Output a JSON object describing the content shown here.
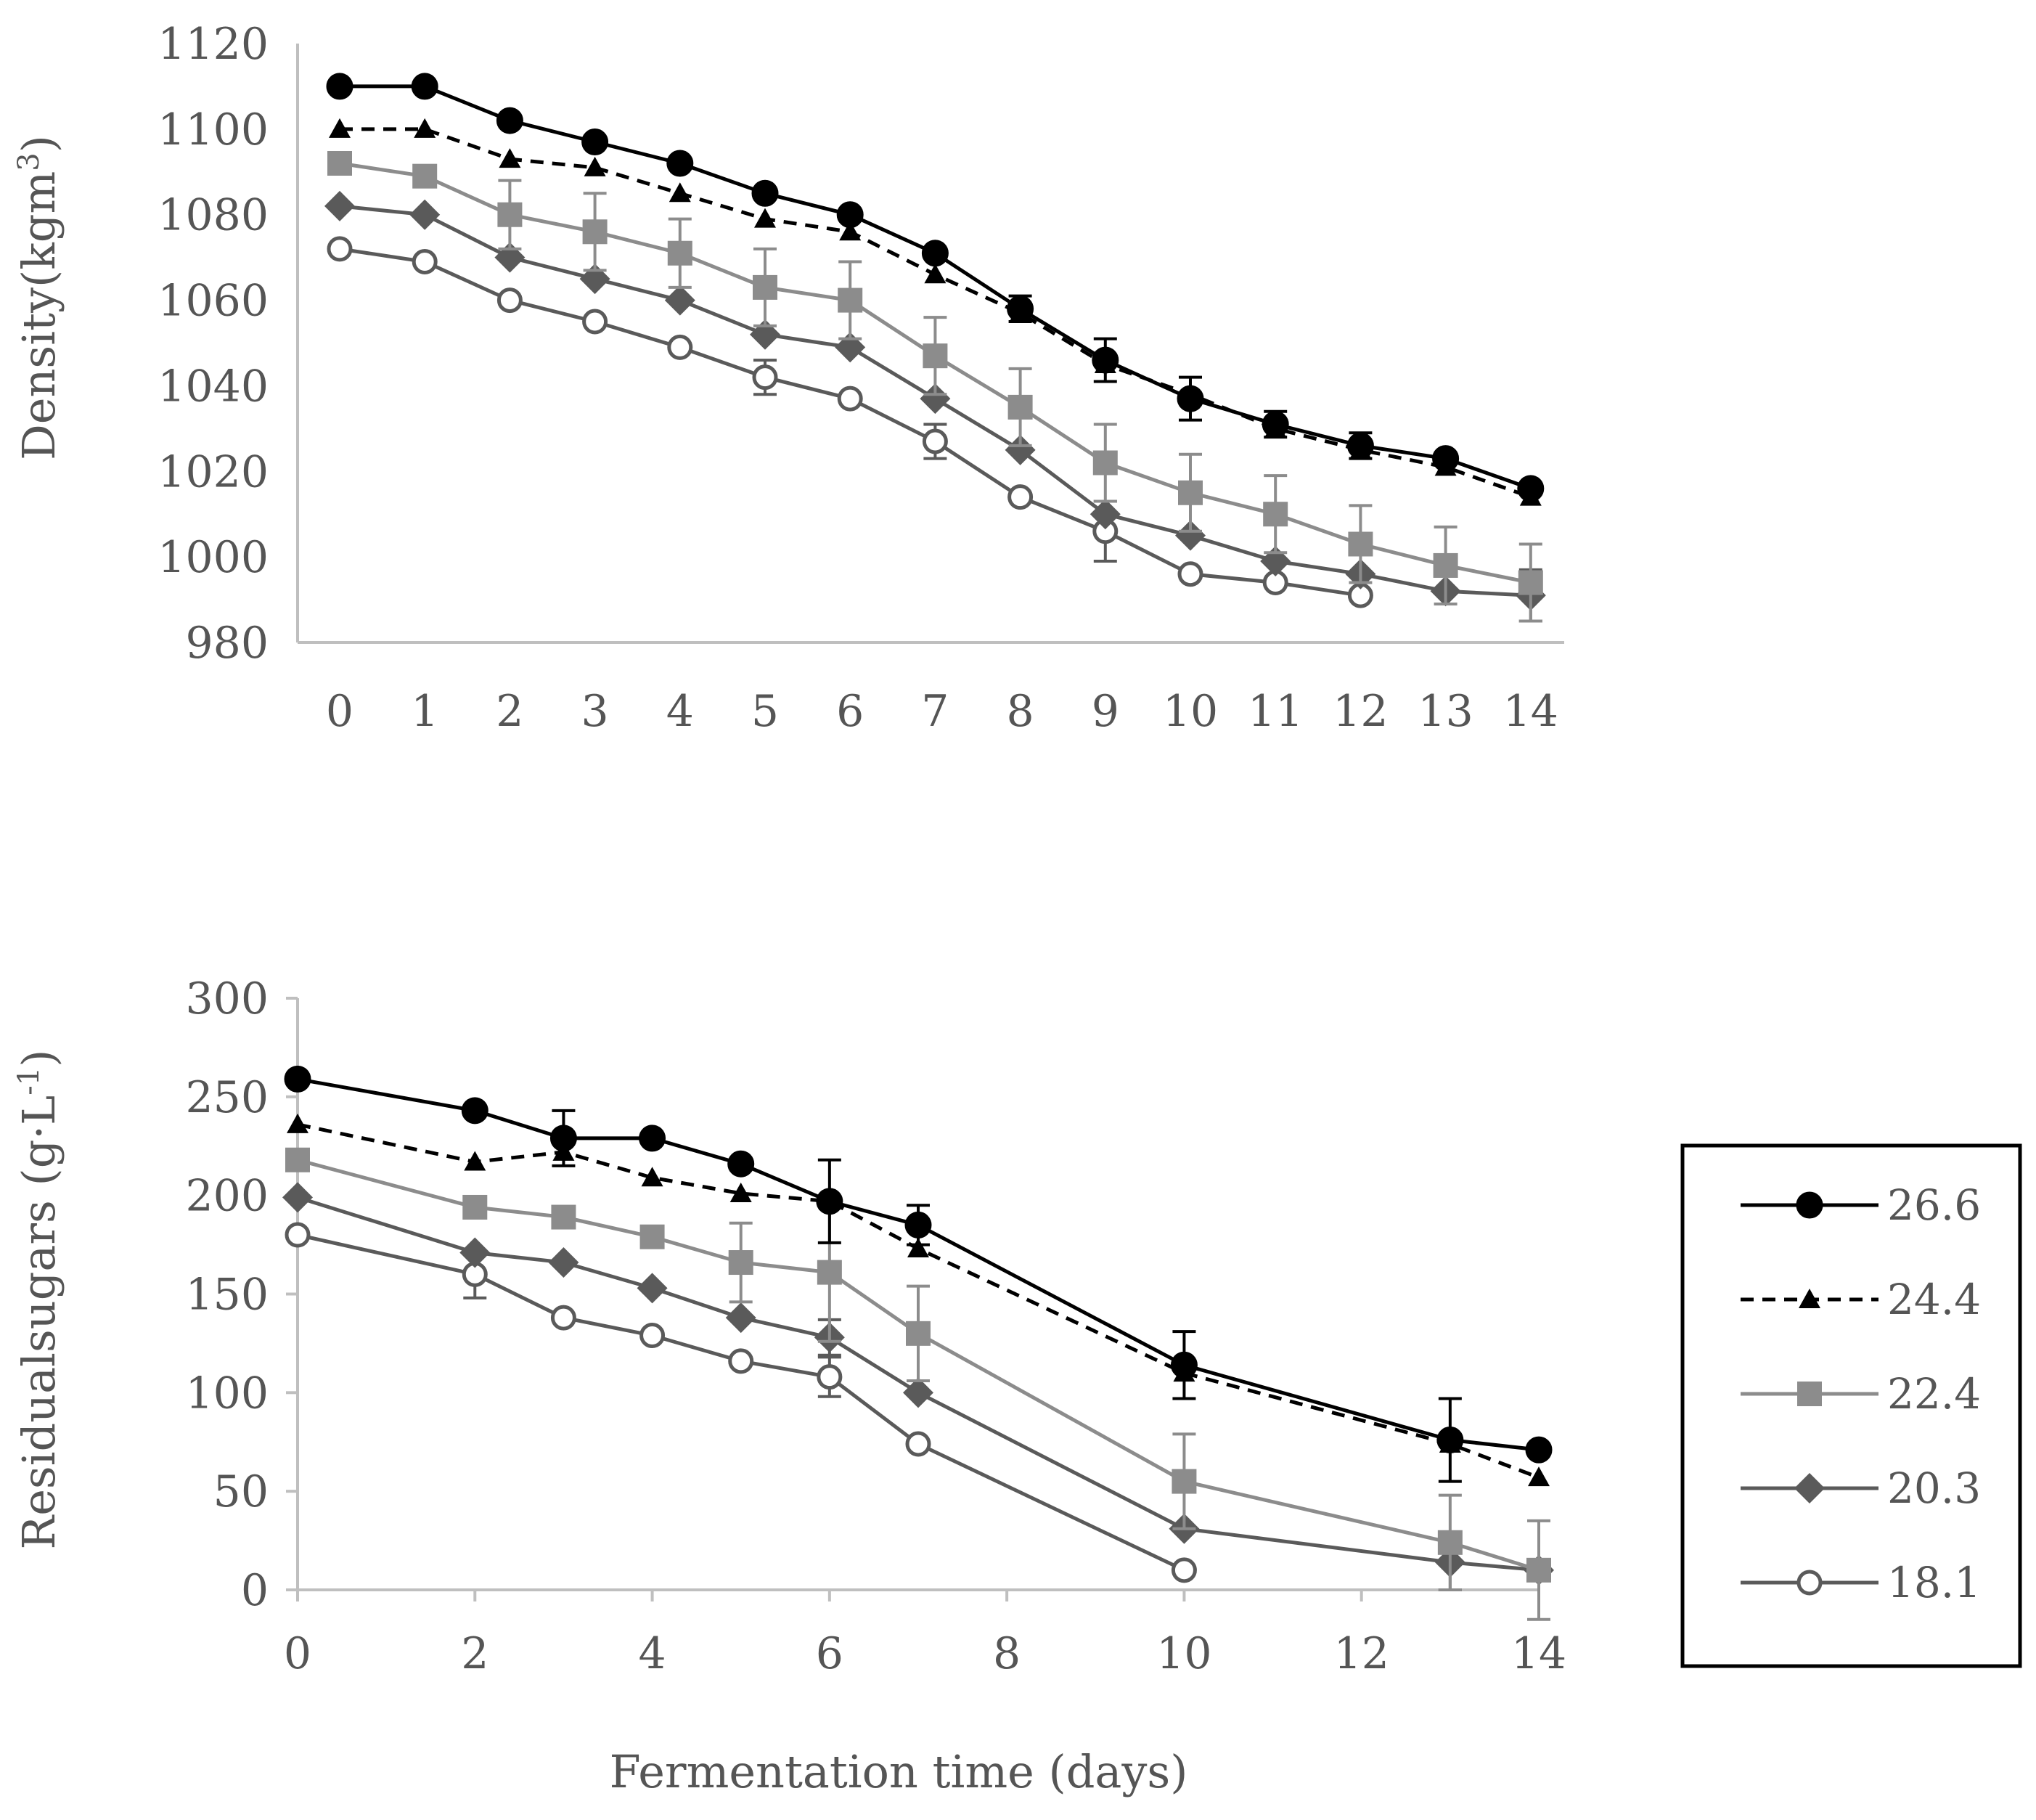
{
  "chart_data": [
    {
      "id": "density",
      "type": "line",
      "title": "",
      "xlabel": "",
      "ylabel": "Density(kgm",
      "ylabel_sup": "3",
      "ylabel_close": ")",
      "x": [
        0,
        1,
        2,
        3,
        4,
        5,
        6,
        7,
        8,
        9,
        10,
        11,
        12,
        13,
        14
      ],
      "xscale": "category",
      "xlim": [
        0,
        14
      ],
      "xticks": [
        0,
        1,
        2,
        3,
        4,
        5,
        6,
        7,
        8,
        9,
        10,
        11,
        12,
        13,
        14
      ],
      "ylim": [
        980,
        1120
      ],
      "yticks": [
        980,
        1000,
        1020,
        1040,
        1060,
        1080,
        1100,
        1120
      ],
      "grid": false,
      "series": [
        {
          "name": "26.6",
          "values": [
            1110,
            1110,
            1102,
            1097,
            1092,
            1085,
            1080,
            1071,
            1058,
            1046,
            1037,
            1031,
            1026,
            1023,
            1016
          ],
          "errors": [
            0,
            0,
            0,
            0,
            0,
            0,
            0,
            0,
            3,
            5,
            5,
            3,
            3,
            0,
            0
          ]
        },
        {
          "name": "24.4",
          "values": [
            1100,
            1100,
            1093,
            1091,
            1085,
            1079,
            1076,
            1066,
            1057,
            1045,
            1038,
            1030,
            1025,
            1021,
            1014
          ],
          "errors": [
            0,
            0,
            0,
            0,
            0,
            0,
            0,
            0,
            0,
            0,
            0,
            0,
            0,
            0,
            0
          ]
        },
        {
          "name": "22.4",
          "values": [
            1092,
            1089,
            1080,
            1076,
            1071,
            1063,
            1060,
            1047,
            1035,
            1022,
            1015,
            1010,
            1003,
            998,
            994
          ],
          "errors": [
            0,
            0,
            8,
            9,
            8,
            9,
            9,
            9,
            9,
            9,
            9,
            9,
            9,
            9,
            9
          ]
        },
        {
          "name": "20.3",
          "values": [
            1082,
            1080,
            1070,
            1065,
            1060,
            1052,
            1049,
            1037,
            1025,
            1010,
            1005,
            999,
            996,
            992,
            991
          ],
          "errors": [
            0,
            0,
            0,
            0,
            0,
            0,
            0,
            0,
            0,
            0,
            0,
            0,
            0,
            0,
            6
          ]
        },
        {
          "name": "18.1",
          "values": [
            1072,
            1069,
            1060,
            1055,
            1049,
            1042,
            1037,
            1027,
            1014,
            1006,
            996,
            994,
            991,
            null,
            null
          ],
          "errors": [
            0,
            0,
            0,
            0,
            0,
            4,
            0,
            4,
            0,
            7,
            0,
            0,
            0,
            0,
            0
          ]
        }
      ]
    },
    {
      "id": "sugars",
      "type": "line",
      "title": "",
      "xlabel": "",
      "ylabel": "Residualsugars (g·L",
      "ylabel_sup": "-1",
      "ylabel_close": ")",
      "xscale": "linear",
      "xlim": [
        0,
        14
      ],
      "xticks": [
        0,
        2,
        4,
        6,
        8,
        10,
        12,
        14
      ],
      "ylim": [
        0,
        300
      ],
      "yticks": [
        0,
        50,
        100,
        150,
        200,
        250,
        300
      ],
      "grid": false,
      "series": [
        {
          "name": "26.6",
          "x": [
            0,
            2,
            3,
            4,
            5,
            6,
            7,
            10,
            13,
            14
          ],
          "values": [
            259,
            243,
            229,
            229,
            216,
            197,
            185,
            114,
            76,
            71
          ],
          "errors": [
            0,
            0,
            14,
            0,
            0,
            21,
            10,
            17,
            21,
            0
          ]
        },
        {
          "name": "24.4",
          "x": [
            0,
            2,
            3,
            4,
            5,
            6,
            7,
            10,
            13,
            14
          ],
          "values": [
            236,
            217,
            222,
            209,
            201,
            197,
            173,
            110,
            74,
            57
          ],
          "errors": [
            0,
            0,
            0,
            0,
            0,
            0,
            0,
            0,
            0,
            0
          ]
        },
        {
          "name": "22.4",
          "x": [
            0,
            2,
            3,
            4,
            5,
            6,
            7,
            10,
            13,
            14
          ],
          "values": [
            218,
            194,
            189,
            179,
            166,
            161,
            130,
            55,
            24,
            10
          ],
          "errors": [
            0,
            0,
            0,
            0,
            20,
            35,
            24,
            24,
            24,
            25
          ]
        },
        {
          "name": "20.3",
          "x": [
            0,
            2,
            3,
            4,
            5,
            6,
            7,
            10,
            13,
            14
          ],
          "values": [
            199,
            171,
            166,
            153,
            138,
            128,
            100,
            31,
            14,
            10
          ],
          "errors": [
            0,
            0,
            0,
            0,
            0,
            9,
            0,
            0,
            14,
            0
          ]
        },
        {
          "name": "18.1",
          "x": [
            0,
            2,
            3,
            4,
            5,
            6,
            7,
            10
          ],
          "values": [
            180,
            160,
            138,
            129,
            116,
            108,
            74,
            10
          ],
          "errors": [
            0,
            12,
            0,
            0,
            0,
            10,
            0,
            0
          ]
        }
      ]
    }
  ],
  "shared_xlabel": "Fermentation time (days)",
  "legend": {
    "placement": "right",
    "items": [
      {
        "label": "26.6",
        "marker": "filled-circle",
        "line": "solid",
        "color": "#000000"
      },
      {
        "label": "24.4",
        "marker": "triangle",
        "line": "dashed",
        "color": "#000000"
      },
      {
        "label": "22.4",
        "marker": "square",
        "line": "solid",
        "color": "#8c8c8c"
      },
      {
        "label": "20.3",
        "marker": "diamond",
        "line": "solid",
        "color": "#5a5a5a"
      },
      {
        "label": "18.1",
        "marker": "open-circle",
        "line": "solid",
        "color": "#5a5a5a"
      }
    ]
  }
}
